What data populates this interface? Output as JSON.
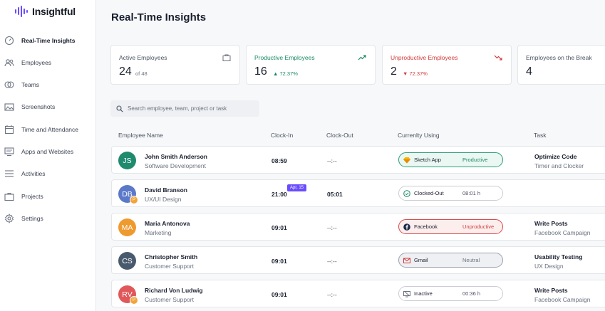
{
  "app": {
    "name": "Insightful"
  },
  "sidebar": {
    "items": [
      {
        "label": "Real-Time Insights",
        "icon": "gauge-icon",
        "active": true
      },
      {
        "label": "Employees",
        "icon": "users-icon"
      },
      {
        "label": "Teams",
        "icon": "teams-icon"
      },
      {
        "label": "Screenshots",
        "icon": "image-icon"
      },
      {
        "label": "Time and Attendance",
        "icon": "calendar-icon"
      },
      {
        "label": "Apps and Websites",
        "icon": "monitor-icon"
      },
      {
        "label": "Activities",
        "icon": "list-icon"
      },
      {
        "label": "Projects",
        "icon": "briefcase-icon"
      },
      {
        "label": "Settings",
        "icon": "gear-icon"
      }
    ]
  },
  "page": {
    "title": "Real-Time Insights"
  },
  "stats": {
    "active": {
      "label": "Active Employees",
      "value": "24",
      "sub": "of 48",
      "icon": "briefcase-icon"
    },
    "productive": {
      "label": "Productive Employees",
      "value": "16",
      "sub": "▲ 72.37%",
      "icon": "trend-up-icon",
      "color": "#1a8a63"
    },
    "unproductive": {
      "label": "Unproductive Employees",
      "value": "2",
      "sub": "▼ 72.37%",
      "icon": "trend-down-icon",
      "color": "#d23c3c"
    },
    "break": {
      "label": "Employees on the Break",
      "value": "4"
    }
  },
  "search": {
    "placeholder": "Search employee, team, project or task"
  },
  "table": {
    "headers": {
      "employee": "Employee Name",
      "clock_in": "Clock-In",
      "clock_out": "Clock-Out",
      "currently": "Currenlty Using",
      "task": "Task"
    },
    "rows": [
      {
        "initials": "JS",
        "avatar_color": "#1f8a6e",
        "name": "John Smith Anderson",
        "team": "Software Development",
        "clock_in": "08:59",
        "clock_out": "--:--",
        "app": "Sketch App",
        "app_icon": "sketch-icon",
        "status": "Productive",
        "status_type": "productive",
        "task": "Optimize Code",
        "project": "Timer and Clocker"
      },
      {
        "initials": "DB",
        "avatar_color": "#5b78c9",
        "badge": "P",
        "name": "David Branson",
        "team": "UX/UI Design",
        "clock_in": "21:00",
        "date_badge": "Apr, 15",
        "clock_out": "05:01",
        "app": "Clocked-Out",
        "app_icon": "check-circle-icon",
        "status": "08:01 h",
        "status_type": "plain",
        "task": "",
        "project": ""
      },
      {
        "initials": "MA",
        "avatar_color": "#ef9a2e",
        "name": "Maria Antonova",
        "team": "Marketing",
        "clock_in": "09:01",
        "clock_out": "--:--",
        "app": "Facebook",
        "app_icon": "facebook-icon",
        "status": "Unproductive",
        "status_type": "unproductive",
        "task": "Write Posts",
        "project": "Facebook Campaign"
      },
      {
        "initials": "CS",
        "avatar_color": "#4a5a6e",
        "name": "Christopher Smith",
        "team": "Customer Support",
        "clock_in": "09:01",
        "clock_out": "--:--",
        "app": "Gmail",
        "app_icon": "gmail-icon",
        "status": "Neutral",
        "status_type": "neutral",
        "task": "Usability Testing",
        "project": "UX Design"
      },
      {
        "initials": "RV",
        "avatar_color": "#e0585a",
        "badge": "P",
        "name": "Richard Von Ludwig",
        "team": "Customer Support",
        "clock_in": "09:01",
        "clock_out": "--:--",
        "app": "Inactive",
        "app_icon": "inactive-icon",
        "status": "00:36 h",
        "status_type": "plain",
        "task": "Write Posts",
        "project": "Facebook Campaign"
      }
    ]
  }
}
